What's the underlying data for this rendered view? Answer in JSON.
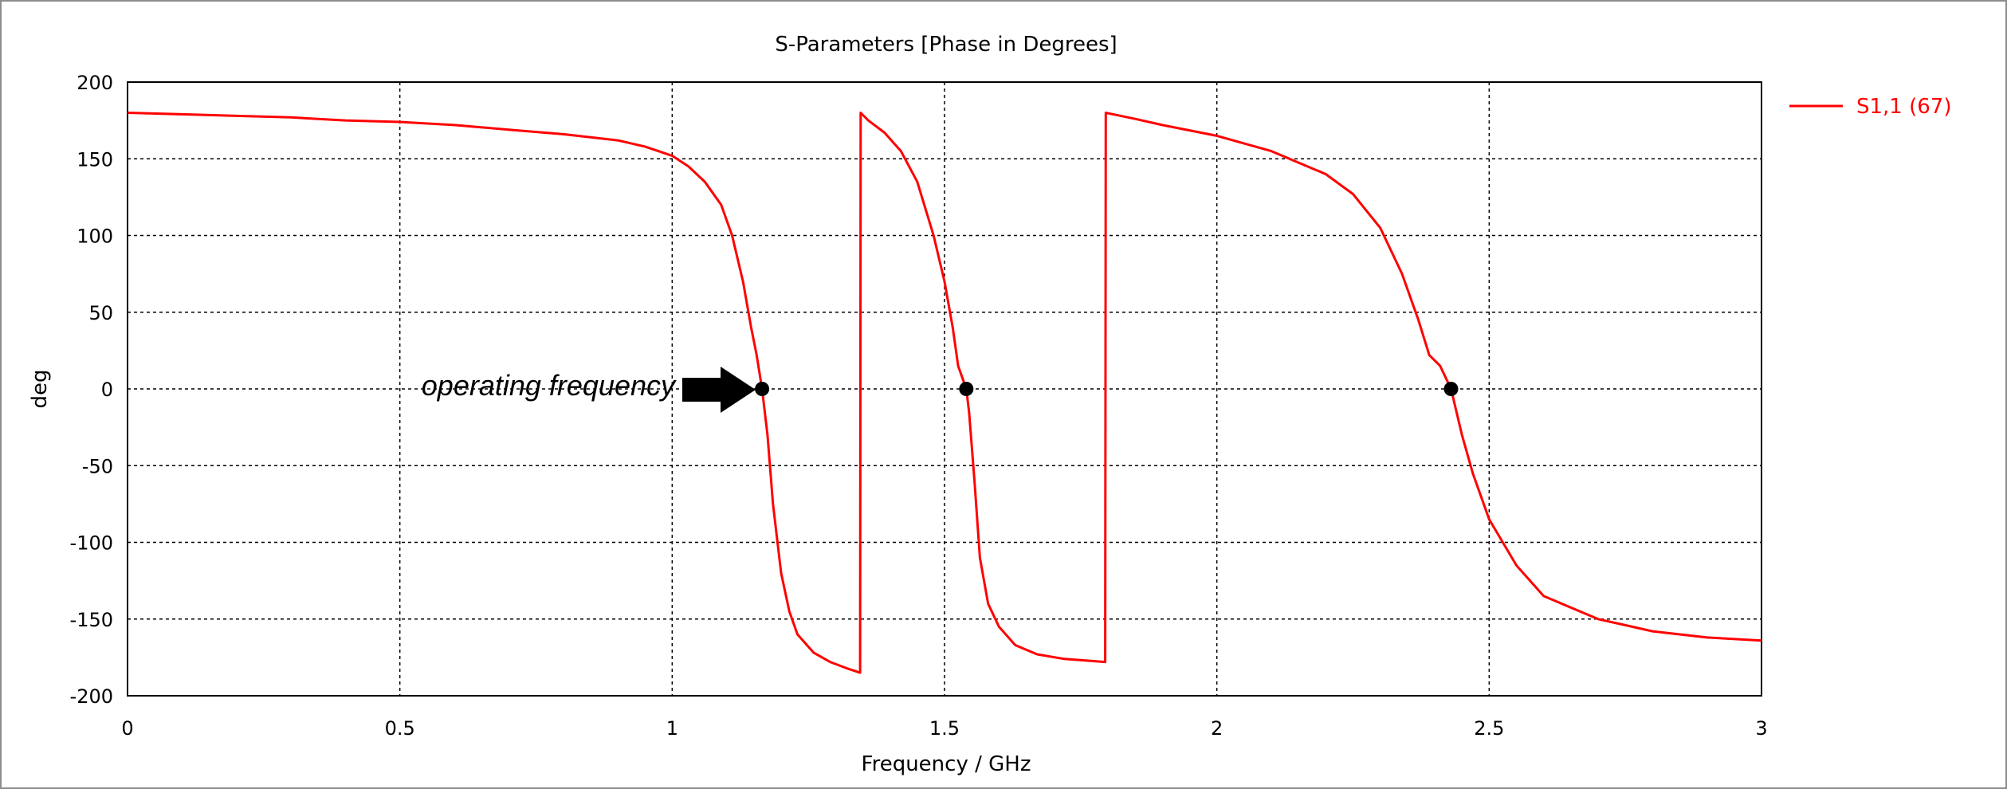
{
  "chart_data": {
    "type": "line",
    "title": "S-Parameters [Phase in Degrees]",
    "xlabel": "Frequency / GHz",
    "ylabel": "deg",
    "xlim": [
      0,
      3
    ],
    "ylim": [
      -200,
      200
    ],
    "grid": true,
    "legend_position": "top-right",
    "x_ticks": [
      0,
      0.5,
      1,
      1.5,
      2,
      2.5,
      3
    ],
    "x_tick_labels": [
      "0",
      "0.5",
      "1",
      "1.5",
      "2",
      "2.5",
      "3"
    ],
    "y_ticks": [
      200,
      150,
      100,
      50,
      0,
      -50,
      -100,
      -150,
      -200
    ],
    "y_tick_labels": [
      "200",
      "150",
      "100",
      "50",
      "0",
      "-50",
      "-100",
      "-150",
      "-200"
    ],
    "series": [
      {
        "name": "S1,1 (67)",
        "color": "#ff0000",
        "x": [
          0,
          0.1,
          0.2,
          0.3,
          0.4,
          0.5,
          0.6,
          0.7,
          0.8,
          0.9,
          0.95,
          1.0,
          1.03,
          1.06,
          1.09,
          1.11,
          1.13,
          1.145,
          1.155,
          1.165,
          1.175,
          1.185,
          1.2,
          1.215,
          1.23,
          1.26,
          1.29,
          1.32,
          1.345,
          1.346,
          1.36,
          1.39,
          1.42,
          1.45,
          1.48,
          1.5,
          1.515,
          1.525,
          1.535,
          1.54,
          1.545,
          1.555,
          1.565,
          1.58,
          1.6,
          1.63,
          1.67,
          1.72,
          1.795,
          1.796,
          1.85,
          1.9,
          2.0,
          2.1,
          2.2,
          2.25,
          2.3,
          2.34,
          2.37,
          2.39,
          2.41,
          2.43,
          2.45,
          2.47,
          2.5,
          2.55,
          2.6,
          2.7,
          2.8,
          2.9,
          3.0
        ],
        "y": [
          180,
          179,
          178,
          177,
          175,
          174,
          172,
          169,
          166,
          162,
          158,
          152,
          145,
          135,
          120,
          100,
          70,
          40,
          22,
          0,
          -30,
          -75,
          -120,
          -145,
          -160,
          -172,
          -178,
          -182,
          -185,
          180,
          175,
          167,
          155,
          135,
          100,
          70,
          40,
          15,
          5,
          0,
          -15,
          -60,
          -110,
          -140,
          -155,
          -167,
          -173,
          -176,
          -178,
          180,
          176,
          172,
          165,
          155,
          140,
          127,
          105,
          75,
          45,
          22,
          15,
          0,
          -30,
          -55,
          -85,
          -115,
          -135,
          -150,
          -158,
          -162,
          -164
        ]
      }
    ],
    "markers": [
      {
        "x": 1.165,
        "y": 0
      },
      {
        "x": 1.54,
        "y": 0
      },
      {
        "x": 2.43,
        "y": 0
      }
    ],
    "annotation": {
      "text": "operating frequency",
      "target_x": 1.165,
      "target_y": 0
    }
  }
}
